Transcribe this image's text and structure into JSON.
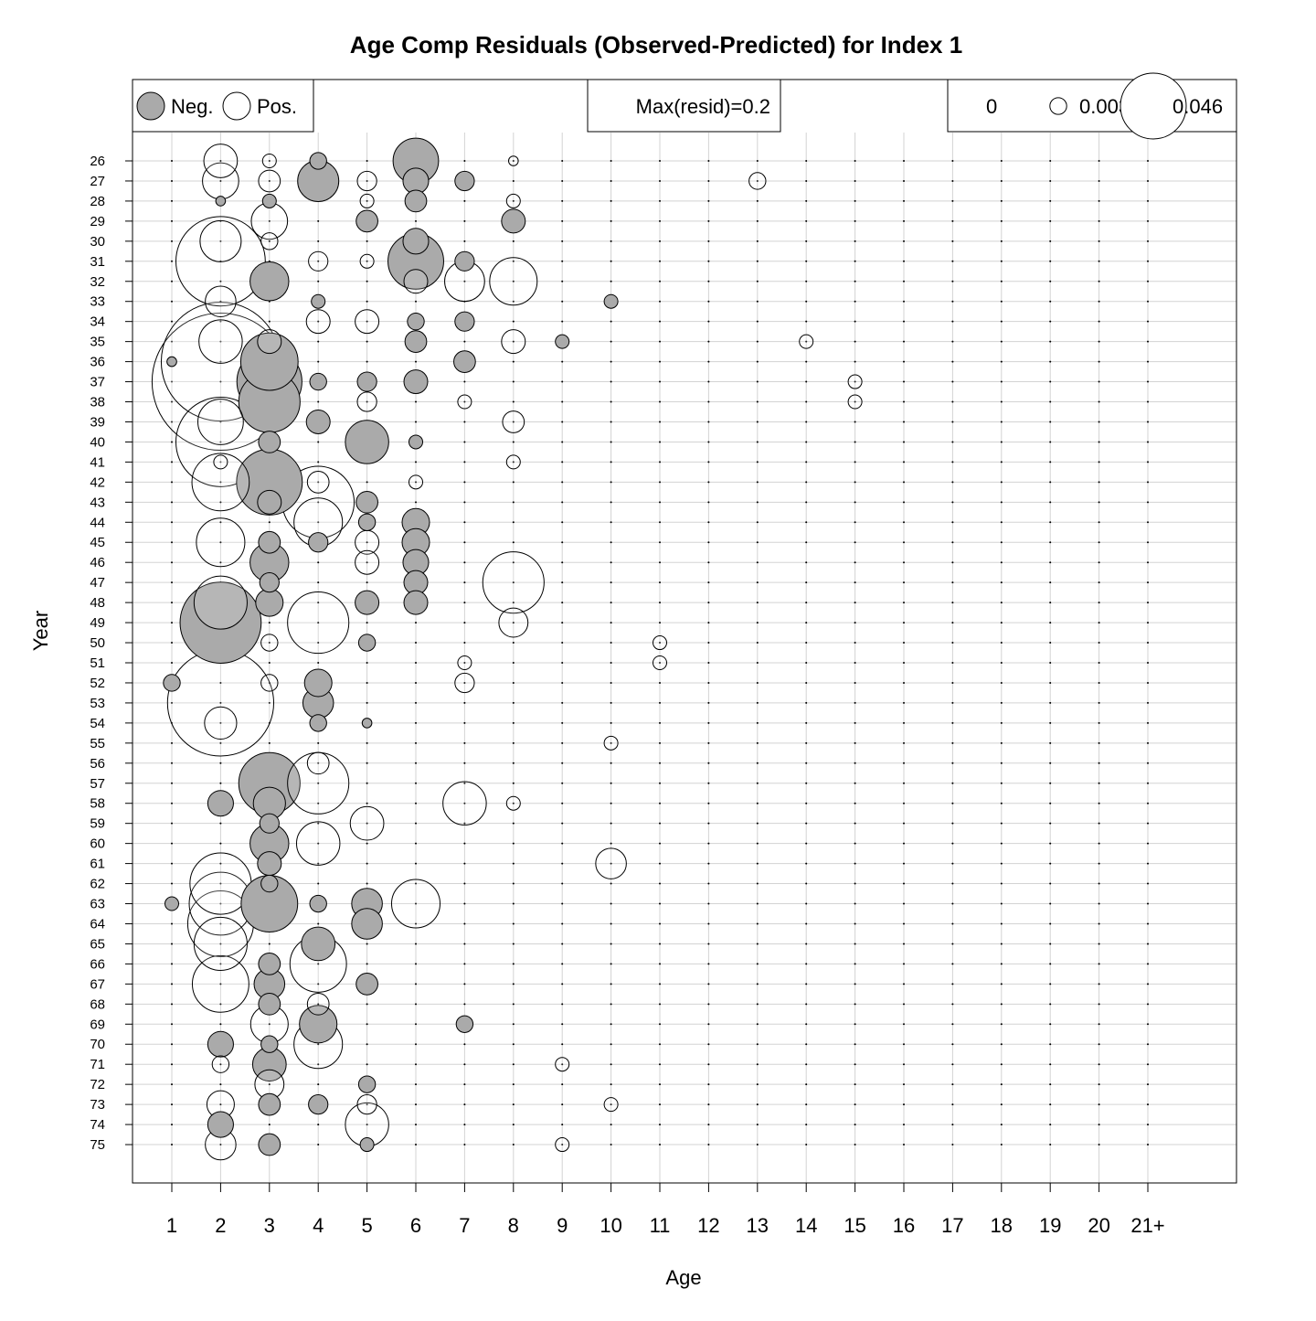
{
  "chart_data": {
    "type": "scatter",
    "title": "Age Comp Residuals (Observed-Predicted) for Index 1",
    "xlabel": "Age",
    "ylabel": "Year",
    "categories": [
      "1",
      "2",
      "3",
      "4",
      "5",
      "6",
      "7",
      "8",
      "9",
      "10",
      "11",
      "12",
      "13",
      "14",
      "15",
      "16",
      "17",
      "18",
      "19",
      "20",
      "21+"
    ],
    "years": [
      "26",
      "27",
      "28",
      "29",
      "30",
      "31",
      "32",
      "33",
      "34",
      "35",
      "36",
      "37",
      "38",
      "39",
      "40",
      "41",
      "42",
      "43",
      "44",
      "45",
      "46",
      "47",
      "48",
      "49",
      "50",
      "51",
      "52",
      "53",
      "54",
      "55",
      "56",
      "57",
      "58",
      "59",
      "60",
      "61",
      "62",
      "63",
      "64",
      "65",
      "66",
      "67",
      "68",
      "69",
      "70",
      "71",
      "72",
      "73",
      "74",
      "75"
    ],
    "grid": true,
    "legend": {
      "neg_label": "Neg.",
      "pos_label": "Pos.",
      "max_label": "Max(resid)=0.2",
      "scale_values": [
        "0",
        "0.003",
        "0.046"
      ],
      "scale_residuals": [
        0,
        0.003,
        0.046
      ]
    },
    "colors": {
      "neg": "#aaaaaa",
      "pos": "#ffffff",
      "stroke": "#000000",
      "grid": "#d3d3d3"
    },
    "points": [
      {
        "year": "26",
        "age": "2",
        "resid": 0.012
      },
      {
        "year": "26",
        "age": "3",
        "resid": 0.002
      },
      {
        "year": "26",
        "age": "4",
        "resid": -0.003
      },
      {
        "year": "26",
        "age": "6",
        "resid": -0.022
      },
      {
        "year": "26",
        "age": "8",
        "resid": 0.001
      },
      {
        "year": "27",
        "age": "2",
        "resid": 0.014
      },
      {
        "year": "27",
        "age": "3",
        "resid": 0.005
      },
      {
        "year": "27",
        "age": "4",
        "resid": -0.018
      },
      {
        "year": "27",
        "age": "5",
        "resid": 0.004
      },
      {
        "year": "27",
        "age": "6",
        "resid": -0.007
      },
      {
        "year": "27",
        "age": "7",
        "resid": -0.004
      },
      {
        "year": "27",
        "age": "13",
        "resid": 0.003
      },
      {
        "year": "28",
        "age": "2",
        "resid": -0.001
      },
      {
        "year": "28",
        "age": "3",
        "resid": -0.002
      },
      {
        "year": "28",
        "age": "5",
        "resid": 0.002
      },
      {
        "year": "28",
        "age": "6",
        "resid": -0.005
      },
      {
        "year": "28",
        "age": "8",
        "resid": 0.002
      },
      {
        "year": "29",
        "age": "3",
        "resid": 0.014
      },
      {
        "year": "29",
        "age": "5",
        "resid": -0.005
      },
      {
        "year": "29",
        "age": "8",
        "resid": -0.006
      },
      {
        "year": "30",
        "age": "2",
        "resid": 0.018
      },
      {
        "year": "30",
        "age": "3",
        "resid": 0.003
      },
      {
        "year": "30",
        "age": "6",
        "resid": -0.007
      },
      {
        "year": "31",
        "age": "2",
        "resid": 0.085
      },
      {
        "year": "31",
        "age": "4",
        "resid": 0.004
      },
      {
        "year": "31",
        "age": "5",
        "resid": 0.002
      },
      {
        "year": "31",
        "age": "6",
        "resid": -0.033
      },
      {
        "year": "31",
        "age": "7",
        "resid": -0.004
      },
      {
        "year": "32",
        "age": "3",
        "resid": -0.016
      },
      {
        "year": "32",
        "age": "6",
        "resid": 0.006
      },
      {
        "year": "32",
        "age": "7",
        "resid": 0.017
      },
      {
        "year": "32",
        "age": "8",
        "resid": 0.024
      },
      {
        "year": "33",
        "age": "2",
        "resid": 0.01
      },
      {
        "year": "33",
        "age": "4",
        "resid": -0.002
      },
      {
        "year": "33",
        "age": "10",
        "resid": -0.002
      },
      {
        "year": "34",
        "age": "4",
        "resid": 0.006
      },
      {
        "year": "34",
        "age": "5",
        "resid": 0.006
      },
      {
        "year": "34",
        "age": "6",
        "resid": -0.003
      },
      {
        "year": "34",
        "age": "7",
        "resid": -0.004
      },
      {
        "year": "35",
        "age": "2",
        "resid": 0.02
      },
      {
        "year": "35",
        "age": "3",
        "resid": 0.006
      },
      {
        "year": "35",
        "age": "6",
        "resid": -0.005
      },
      {
        "year": "35",
        "age": "8",
        "resid": 0.006
      },
      {
        "year": "35",
        "age": "9",
        "resid": -0.002
      },
      {
        "year": "35",
        "age": "14",
        "resid": 0.002
      },
      {
        "year": "36",
        "age": "1",
        "resid": -0.001
      },
      {
        "year": "36",
        "age": "2",
        "resid": 0.15
      },
      {
        "year": "36",
        "age": "3",
        "resid": -0.035
      },
      {
        "year": "36",
        "age": "7",
        "resid": -0.005
      },
      {
        "year": "37",
        "age": "2",
        "resid": 0.2
      },
      {
        "year": "37",
        "age": "3",
        "resid": -0.045
      },
      {
        "year": "37",
        "age": "4",
        "resid": -0.003
      },
      {
        "year": "37",
        "age": "5",
        "resid": -0.004
      },
      {
        "year": "37",
        "age": "6",
        "resid": -0.006
      },
      {
        "year": "37",
        "age": "15",
        "resid": 0.002
      },
      {
        "year": "38",
        "age": "3",
        "resid": -0.04
      },
      {
        "year": "38",
        "age": "5",
        "resid": 0.004
      },
      {
        "year": "38",
        "age": "7",
        "resid": 0.002
      },
      {
        "year": "38",
        "age": "15",
        "resid": 0.002
      },
      {
        "year": "39",
        "age": "2",
        "resid": 0.022
      },
      {
        "year": "39",
        "age": "4",
        "resid": -0.006
      },
      {
        "year": "39",
        "age": "8",
        "resid": 0.005
      },
      {
        "year": "40",
        "age": "2",
        "resid": 0.085
      },
      {
        "year": "40",
        "age": "3",
        "resid": -0.005
      },
      {
        "year": "40",
        "age": "5",
        "resid": -0.02
      },
      {
        "year": "40",
        "age": "6",
        "resid": -0.002
      },
      {
        "year": "41",
        "age": "2",
        "resid": 0.002
      },
      {
        "year": "41",
        "age": "8",
        "resid": 0.002
      },
      {
        "year": "42",
        "age": "2",
        "resid": 0.035
      },
      {
        "year": "42",
        "age": "3",
        "resid": -0.046
      },
      {
        "year": "42",
        "age": "4",
        "resid": 0.005
      },
      {
        "year": "42",
        "age": "6",
        "resid": 0.002
      },
      {
        "year": "43",
        "age": "4",
        "resid": 0.055
      },
      {
        "year": "43",
        "age": "3",
        "resid": -0.006
      },
      {
        "year": "43",
        "age": "5",
        "resid": -0.005
      },
      {
        "year": "44",
        "age": "4",
        "resid": 0.025
      },
      {
        "year": "44",
        "age": "5",
        "resid": -0.003
      },
      {
        "year": "44",
        "age": "6",
        "resid": -0.008
      },
      {
        "year": "45",
        "age": "2",
        "resid": 0.025
      },
      {
        "year": "45",
        "age": "3",
        "resid": -0.005
      },
      {
        "year": "45",
        "age": "4",
        "resid": -0.004
      },
      {
        "year": "45",
        "age": "5",
        "resid": 0.006
      },
      {
        "year": "45",
        "age": "6",
        "resid": -0.008
      },
      {
        "year": "46",
        "age": "3",
        "resid": -0.016
      },
      {
        "year": "46",
        "age": "5",
        "resid": 0.006
      },
      {
        "year": "46",
        "age": "6",
        "resid": -0.007
      },
      {
        "year": "47",
        "age": "3",
        "resid": -0.004
      },
      {
        "year": "47",
        "age": "6",
        "resid": -0.006
      },
      {
        "year": "47",
        "age": "8",
        "resid": 0.04
      },
      {
        "year": "48",
        "age": "2",
        "resid": 0.03
      },
      {
        "year": "48",
        "age": "3",
        "resid": -0.008
      },
      {
        "year": "48",
        "age": "5",
        "resid": -0.006
      },
      {
        "year": "48",
        "age": "6",
        "resid": -0.006
      },
      {
        "year": "49",
        "age": "2",
        "resid": -0.07
      },
      {
        "year": "49",
        "age": "4",
        "resid": 0.04
      },
      {
        "year": "49",
        "age": "8",
        "resid": 0.009
      },
      {
        "year": "50",
        "age": "3",
        "resid": 0.003
      },
      {
        "year": "50",
        "age": "5",
        "resid": -0.003
      },
      {
        "year": "50",
        "age": "11",
        "resid": 0.002
      },
      {
        "year": "51",
        "age": "7",
        "resid": 0.002
      },
      {
        "year": "51",
        "age": "11",
        "resid": 0.002
      },
      {
        "year": "52",
        "age": "1",
        "resid": -0.003
      },
      {
        "year": "52",
        "age": "3",
        "resid": 0.003
      },
      {
        "year": "52",
        "age": "4",
        "resid": -0.008
      },
      {
        "year": "52",
        "age": "7",
        "resid": 0.004
      },
      {
        "year": "53",
        "age": "2",
        "resid": 0.12
      },
      {
        "year": "53",
        "age": "4",
        "resid": -0.01
      },
      {
        "year": "54",
        "age": "2",
        "resid": 0.011
      },
      {
        "year": "54",
        "age": "4",
        "resid": -0.003
      },
      {
        "year": "54",
        "age": "5",
        "resid": -0.001
      },
      {
        "year": "55",
        "age": "10",
        "resid": 0.002
      },
      {
        "year": "56",
        "age": "4",
        "resid": 0.005
      },
      {
        "year": "57",
        "age": "3",
        "resid": -0.04
      },
      {
        "year": "57",
        "age": "4",
        "resid": 0.04
      },
      {
        "year": "58",
        "age": "2",
        "resid": -0.007
      },
      {
        "year": "58",
        "age": "3",
        "resid": -0.011
      },
      {
        "year": "58",
        "age": "7",
        "resid": 0.02
      },
      {
        "year": "58",
        "age": "8",
        "resid": 0.002
      },
      {
        "year": "59",
        "age": "3",
        "resid": -0.004
      },
      {
        "year": "59",
        "age": "5",
        "resid": 0.012
      },
      {
        "year": "60",
        "age": "3",
        "resid": -0.016
      },
      {
        "year": "60",
        "age": "4",
        "resid": 0.02
      },
      {
        "year": "61",
        "age": "3",
        "resid": -0.006
      },
      {
        "year": "61",
        "age": "10",
        "resid": 0.01
      },
      {
        "year": "62",
        "age": "2",
        "resid": 0.04
      },
      {
        "year": "62",
        "age": "3",
        "resid": -0.003
      },
      {
        "year": "63",
        "age": "1",
        "resid": -0.002
      },
      {
        "year": "63",
        "age": "2",
        "resid": 0.042
      },
      {
        "year": "63",
        "age": "3",
        "resid": -0.034
      },
      {
        "year": "63",
        "age": "4",
        "resid": -0.003
      },
      {
        "year": "63",
        "age": "5",
        "resid": -0.01
      },
      {
        "year": "63",
        "age": "6",
        "resid": 0.025
      },
      {
        "year": "64",
        "age": "2",
        "resid": 0.046
      },
      {
        "year": "64",
        "age": "5",
        "resid": -0.01
      },
      {
        "year": "65",
        "age": "2",
        "resid": 0.03
      },
      {
        "year": "65",
        "age": "4",
        "resid": -0.012
      },
      {
        "year": "66",
        "age": "3",
        "resid": -0.005
      },
      {
        "year": "66",
        "age": "4",
        "resid": 0.034
      },
      {
        "year": "67",
        "age": "2",
        "resid": 0.034
      },
      {
        "year": "67",
        "age": "3",
        "resid": -0.01
      },
      {
        "year": "67",
        "age": "5",
        "resid": -0.005
      },
      {
        "year": "68",
        "age": "3",
        "resid": -0.005
      },
      {
        "year": "68",
        "age": "4",
        "resid": 0.005
      },
      {
        "year": "69",
        "age": "3",
        "resid": 0.015
      },
      {
        "year": "69",
        "age": "4",
        "resid": -0.015
      },
      {
        "year": "69",
        "age": "7",
        "resid": -0.003
      },
      {
        "year": "70",
        "age": "2",
        "resid": -0.007
      },
      {
        "year": "70",
        "age": "3",
        "resid": -0.003
      },
      {
        "year": "70",
        "age": "4",
        "resid": 0.025
      },
      {
        "year": "71",
        "age": "2",
        "resid": 0.003
      },
      {
        "year": "71",
        "age": "3",
        "resid": -0.012
      },
      {
        "year": "71",
        "age": "9",
        "resid": 0.002
      },
      {
        "year": "72",
        "age": "3",
        "resid": 0.009
      },
      {
        "year": "72",
        "age": "5",
        "resid": -0.003
      },
      {
        "year": "73",
        "age": "2",
        "resid": 0.008
      },
      {
        "year": "73",
        "age": "3",
        "resid": -0.005
      },
      {
        "year": "73",
        "age": "4",
        "resid": -0.004
      },
      {
        "year": "73",
        "age": "5",
        "resid": 0.004
      },
      {
        "year": "73",
        "age": "10",
        "resid": 0.002
      },
      {
        "year": "74",
        "age": "2",
        "resid": -0.007
      },
      {
        "year": "74",
        "age": "5",
        "resid": 0.02
      },
      {
        "year": "75",
        "age": "2",
        "resid": 0.01
      },
      {
        "year": "75",
        "age": "3",
        "resid": -0.005
      },
      {
        "year": "75",
        "age": "5",
        "resid": -0.002
      },
      {
        "year": "75",
        "age": "9",
        "resid": 0.002
      }
    ]
  }
}
